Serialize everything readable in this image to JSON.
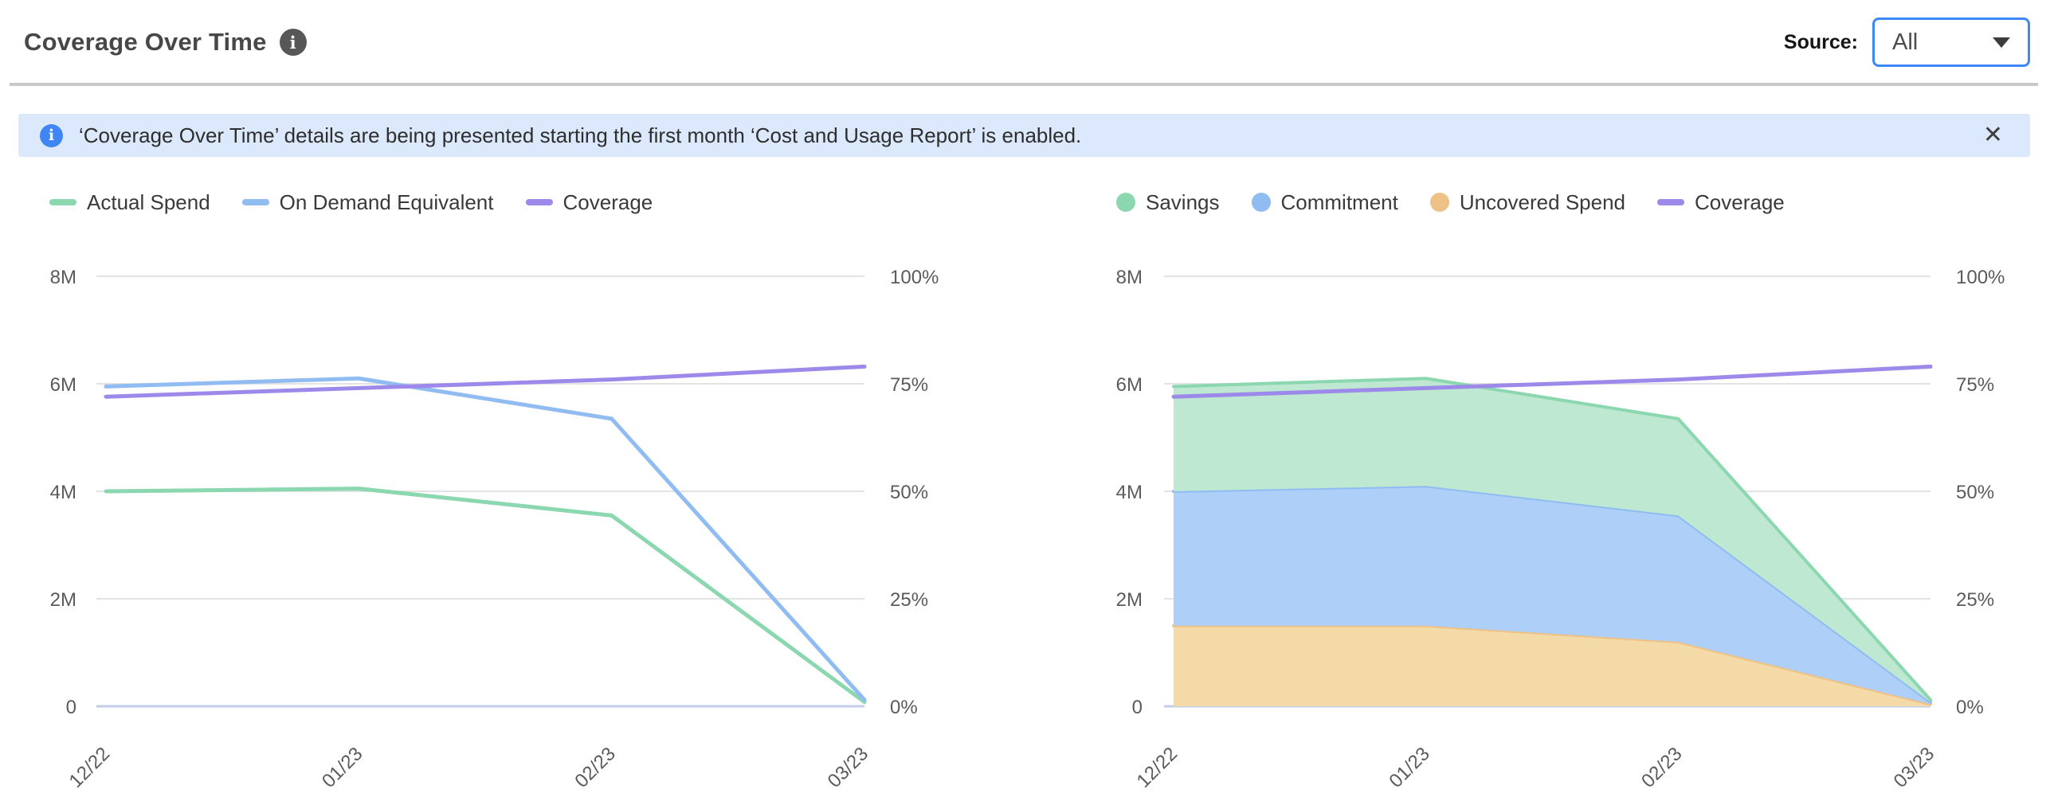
{
  "header": {
    "title": "Coverage Over Time",
    "source_label": "Source:",
    "source_value": "All"
  },
  "banner": {
    "text": "‘Coverage Over Time’ details are being presented starting the first month ‘Cost and Usage Report’ is enabled.",
    "close_glyph": "✕"
  },
  "colors": {
    "green": "#8bd7af",
    "green_fill": "#bee8d2",
    "blue": "#90bcf2",
    "blue_fill": "#adcff8",
    "purple": "#9c89e9",
    "orange": "#eec287",
    "orange_fill": "#f4daa7",
    "grid": "#e3e3e3",
    "baseline": "#c3cde9",
    "banner_bg": "#dce8fb",
    "banner_icon_bg": "#4184f4",
    "dropdown_border": "#3e87f6"
  },
  "chart_data": [
    {
      "type": "line",
      "categories": [
        "12/22",
        "01/23",
        "02/23",
        "03/23"
      ],
      "grid": "horizontal",
      "legend_position": "top-left",
      "y_left": {
        "min": 0,
        "max": 8,
        "ticks": [
          0,
          2,
          4,
          6,
          8
        ],
        "tick_labels": [
          "0",
          "2M",
          "4M",
          "6M",
          "8M"
        ]
      },
      "y_right": {
        "min": 0,
        "max": 100,
        "ticks": [
          0,
          25,
          50,
          75,
          100
        ],
        "tick_labels": [
          "0%",
          "25%",
          "50%",
          "75%",
          "100%"
        ]
      },
      "legend": [
        {
          "name": "Actual Spend",
          "marker": "line",
          "color_key": "green"
        },
        {
          "name": "On Demand Equivalent",
          "marker": "line",
          "color_key": "blue"
        },
        {
          "name": "Coverage",
          "marker": "line",
          "color_key": "purple"
        }
      ],
      "series": [
        {
          "name": "Actual Spend",
          "kind": "line",
          "axis": "left",
          "color_key": "green",
          "values": [
            4.0,
            4.05,
            3.55,
            0.08
          ]
        },
        {
          "name": "On Demand Equivalent",
          "kind": "line",
          "axis": "left",
          "color_key": "blue",
          "values": [
            5.95,
            6.1,
            5.35,
            0.12
          ]
        },
        {
          "name": "Coverage",
          "kind": "line",
          "axis": "right",
          "color_key": "purple",
          "values": [
            72,
            74,
            76,
            79
          ]
        }
      ]
    },
    {
      "type": "area",
      "categories": [
        "12/22",
        "01/23",
        "02/23",
        "03/23"
      ],
      "grid": "horizontal",
      "legend_position": "top-left",
      "y_left": {
        "min": 0,
        "max": 8,
        "ticks": [
          0,
          2,
          4,
          6,
          8
        ],
        "tick_labels": [
          "0",
          "2M",
          "4M",
          "6M",
          "8M"
        ]
      },
      "y_right": {
        "min": 0,
        "max": 100,
        "ticks": [
          0,
          25,
          50,
          75,
          100
        ],
        "tick_labels": [
          "0%",
          "25%",
          "50%",
          "75%",
          "100%"
        ]
      },
      "legend": [
        {
          "name": "Savings",
          "marker": "dot",
          "color_key": "green"
        },
        {
          "name": "Commitment",
          "marker": "dot",
          "color_key": "blue"
        },
        {
          "name": "Uncovered Spend",
          "marker": "dot",
          "color_key": "orange"
        },
        {
          "name": "Coverage",
          "marker": "line",
          "color_key": "purple"
        }
      ],
      "series": [
        {
          "name": "Uncovered Spend",
          "kind": "area-stacked",
          "axis": "left",
          "color_key": "orange",
          "fill_key": "orange_fill",
          "values": [
            1.5,
            1.5,
            1.2,
            0.04
          ]
        },
        {
          "name": "Commitment",
          "kind": "area-stacked",
          "axis": "left",
          "color_key": "blue",
          "fill_key": "blue_fill",
          "values": [
            2.5,
            2.6,
            2.35,
            0.04
          ]
        },
        {
          "name": "Savings",
          "kind": "area-stacked",
          "axis": "left",
          "color_key": "green",
          "fill_key": "green_fill",
          "values": [
            1.95,
            2.0,
            1.8,
            0.04
          ]
        },
        {
          "name": "Coverage",
          "kind": "line",
          "axis": "right",
          "color_key": "purple",
          "values": [
            72,
            74,
            76,
            79
          ]
        }
      ]
    }
  ]
}
